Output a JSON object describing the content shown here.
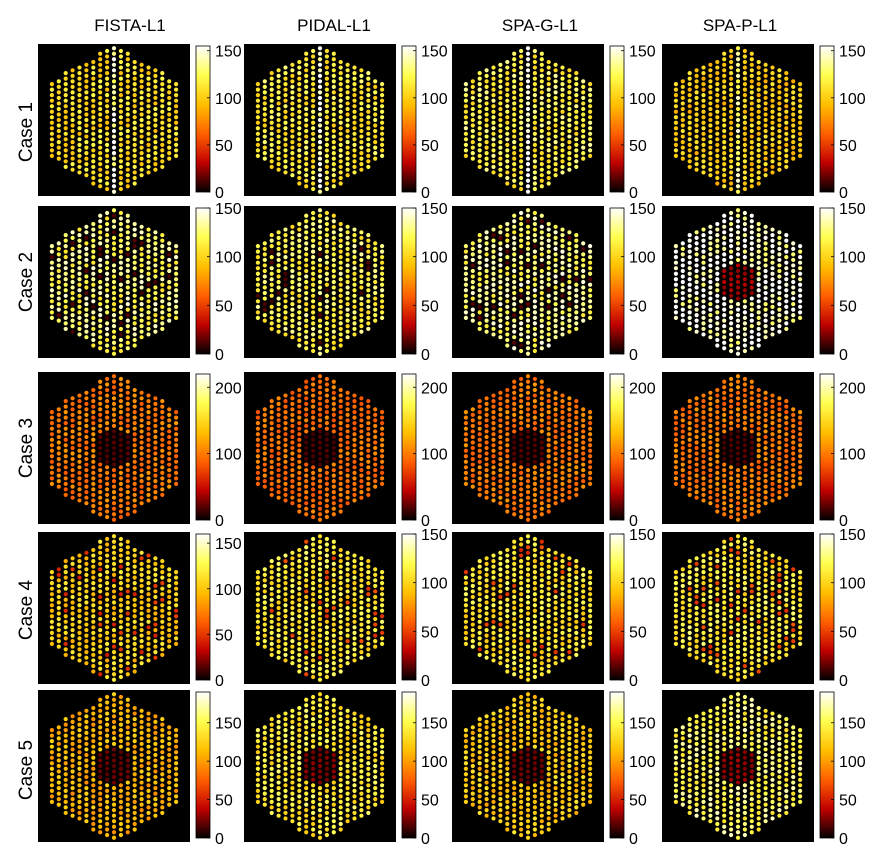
{
  "colormap": [
    "#000000",
    "#c00000",
    "#ff6000",
    "#ffc000",
    "#ffff50",
    "#ffffff"
  ],
  "column_titles": [
    "FISTA-L1",
    "PIDAL-L1",
    "SPA-G-L1",
    "SPA-P-L1"
  ],
  "row_labels": [
    "Case 1",
    "Case 2",
    "Case 3",
    "Case 4",
    "Case 5"
  ],
  "chart_data": [
    {
      "type": "heatmap",
      "row": 0,
      "col": 0,
      "row_label": "Case 1",
      "title": "FISTA-L1",
      "clim": [
        0,
        155
      ],
      "colorbar_ticks": [
        0,
        50,
        100,
        150
      ],
      "typical_value": 108,
      "pattern": "center_column_bright"
    },
    {
      "type": "heatmap",
      "row": 0,
      "col": 1,
      "row_label": "Case 1",
      "title": "PIDAL-L1",
      "clim": [
        0,
        155
      ],
      "colorbar_ticks": [
        0,
        50,
        100,
        150
      ],
      "typical_value": 115,
      "pattern": "center_column_bright"
    },
    {
      "type": "heatmap",
      "row": 0,
      "col": 2,
      "row_label": "Case 1",
      "title": "SPA-G-L1",
      "clim": [
        0,
        155
      ],
      "colorbar_ticks": [
        0,
        50,
        100,
        150
      ],
      "typical_value": 120,
      "pattern": "center_column_bright"
    },
    {
      "type": "heatmap",
      "row": 0,
      "col": 3,
      "row_label": "Case 1",
      "title": "SPA-P-L1",
      "clim": [
        0,
        155
      ],
      "colorbar_ticks": [
        0,
        50,
        100,
        150
      ],
      "typical_value": 100,
      "pattern": "center_column_bright"
    },
    {
      "type": "heatmap",
      "row": 1,
      "col": 0,
      "row_label": "Case 2",
      "title": "FISTA-L1",
      "clim": [
        0,
        150
      ],
      "colorbar_ticks": [
        0,
        50,
        100,
        150
      ],
      "typical_value": 125,
      "pattern": "scattered_dark_spots"
    },
    {
      "type": "heatmap",
      "row": 1,
      "col": 1,
      "row_label": "Case 2",
      "title": "PIDAL-L1",
      "clim": [
        0,
        150
      ],
      "colorbar_ticks": [
        0,
        50,
        100,
        150
      ],
      "typical_value": 118,
      "pattern": "scattered_dark_spots"
    },
    {
      "type": "heatmap",
      "row": 1,
      "col": 2,
      "row_label": "Case 2",
      "title": "SPA-G-L1",
      "clim": [
        0,
        150
      ],
      "colorbar_ticks": [
        0,
        50,
        100,
        150
      ],
      "typical_value": 128,
      "pattern": "scattered_dark_spots"
    },
    {
      "type": "heatmap",
      "row": 1,
      "col": 3,
      "row_label": "Case 2",
      "title": "SPA-P-L1",
      "clim": [
        0,
        150
      ],
      "colorbar_ticks": [
        0,
        50,
        100,
        150
      ],
      "typical_value": 145,
      "pattern": "dark_center"
    },
    {
      "type": "heatmap",
      "row": 2,
      "col": 0,
      "row_label": "Case 3",
      "title": "FISTA-L1",
      "clim": [
        0,
        220
      ],
      "colorbar_ticks": [
        0,
        100,
        200
      ],
      "typical_value": 100,
      "pattern": "dark_center"
    },
    {
      "type": "heatmap",
      "row": 2,
      "col": 1,
      "row_label": "Case 3",
      "title": "PIDAL-L1",
      "clim": [
        0,
        220
      ],
      "colorbar_ticks": [
        0,
        100,
        200
      ],
      "typical_value": 95,
      "pattern": "dark_center"
    },
    {
      "type": "heatmap",
      "row": 2,
      "col": 2,
      "row_label": "Case 3",
      "title": "SPA-G-L1",
      "clim": [
        0,
        220
      ],
      "colorbar_ticks": [
        0,
        100,
        200
      ],
      "typical_value": 100,
      "pattern": "dark_center"
    },
    {
      "type": "heatmap",
      "row": 2,
      "col": 3,
      "row_label": "Case 3",
      "title": "SPA-P-L1",
      "clim": [
        0,
        220
      ],
      "colorbar_ticks": [
        0,
        100,
        200
      ],
      "typical_value": 100,
      "pattern": "dark_center"
    },
    {
      "type": "heatmap",
      "row": 3,
      "col": 0,
      "row_label": "Case 4",
      "title": "FISTA-L1",
      "clim": [
        0,
        160
      ],
      "colorbar_ticks": [
        0,
        50,
        100,
        150
      ],
      "typical_value": 105,
      "pattern": "scattered_red_spots"
    },
    {
      "type": "heatmap",
      "row": 3,
      "col": 1,
      "row_label": "Case 4",
      "title": "PIDAL-L1",
      "clim": [
        0,
        150
      ],
      "colorbar_ticks": [
        0,
        50,
        100,
        150
      ],
      "typical_value": 110,
      "pattern": "scattered_red_spots"
    },
    {
      "type": "heatmap",
      "row": 3,
      "col": 2,
      "row_label": "Case 4",
      "title": "SPA-G-L1",
      "clim": [
        0,
        150
      ],
      "colorbar_ticks": [
        0,
        50,
        100,
        150
      ],
      "typical_value": 108,
      "pattern": "scattered_red_spots"
    },
    {
      "type": "heatmap",
      "row": 3,
      "col": 3,
      "row_label": "Case 4",
      "title": "SPA-P-L1",
      "clim": [
        0,
        150
      ],
      "colorbar_ticks": [
        0,
        50,
        100,
        150
      ],
      "typical_value": 112,
      "pattern": "scattered_red_spots"
    },
    {
      "type": "heatmap",
      "row": 4,
      "col": 0,
      "row_label": "Case 5",
      "title": "FISTA-L1",
      "clim": [
        0,
        190
      ],
      "colorbar_ticks": [
        0,
        50,
        100,
        150
      ],
      "typical_value": 110,
      "pattern": "dark_center"
    },
    {
      "type": "heatmap",
      "row": 4,
      "col": 1,
      "row_label": "Case 5",
      "title": "PIDAL-L1",
      "clim": [
        0,
        190
      ],
      "colorbar_ticks": [
        0,
        50,
        100,
        150
      ],
      "typical_value": 140,
      "pattern": "dark_center"
    },
    {
      "type": "heatmap",
      "row": 4,
      "col": 2,
      "row_label": "Case 5",
      "title": "SPA-G-L1",
      "clim": [
        0,
        190
      ],
      "colorbar_ticks": [
        0,
        50,
        100,
        150
      ],
      "typical_value": 120,
      "pattern": "dark_center"
    },
    {
      "type": "heatmap",
      "row": 4,
      "col": 3,
      "row_label": "Case 5",
      "title": "SPA-P-L1",
      "clim": [
        0,
        190
      ],
      "colorbar_ticks": [
        0,
        50,
        100,
        150
      ],
      "typical_value": 155,
      "pattern": "dark_center"
    }
  ]
}
